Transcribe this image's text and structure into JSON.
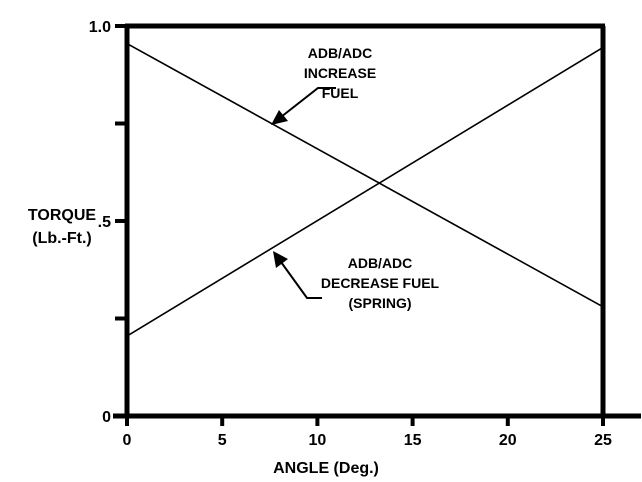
{
  "chart_data": {
    "type": "line",
    "title": "",
    "xlabel": "ANGLE (Deg.)",
    "ylabel_lines": [
      "TORQUE",
      "(Lb.-Ft.)"
    ],
    "xlim": [
      0,
      25
    ],
    "ylim": [
      0,
      1.0
    ],
    "x_ticks": [
      {
        "value": 0,
        "label": "0"
      },
      {
        "value": 5,
        "label": "5"
      },
      {
        "value": 10,
        "label": "10"
      },
      {
        "value": 15,
        "label": "15"
      },
      {
        "value": 20,
        "label": "20"
      },
      {
        "value": 25,
        "label": "25"
      }
    ],
    "y_ticks": [
      {
        "value": 0,
        "label": "0"
      },
      {
        "value": 0.25,
        "label": ""
      },
      {
        "value": 0.5,
        "label": ".5"
      },
      {
        "value": 0.75,
        "label": ""
      },
      {
        "value": 1.0,
        "label": "1.0"
      }
    ],
    "grid": false,
    "series": [
      {
        "name": "",
        "x": [
          0,
          25
        ],
        "y": [
          0.955,
          0.28
        ],
        "annotation_lines": [
          "ADB/ADC",
          "INCREASE",
          "FUEL"
        ]
      },
      {
        "name": "",
        "x": [
          0,
          25
        ],
        "y": [
          0.205,
          0.945
        ],
        "annotation_lines": [
          "ADB/ADC",
          "DECREASE FUEL",
          "(SPRING)"
        ]
      }
    ],
    "colors": {
      "line": "#000000",
      "background": "#ffffff"
    }
  }
}
